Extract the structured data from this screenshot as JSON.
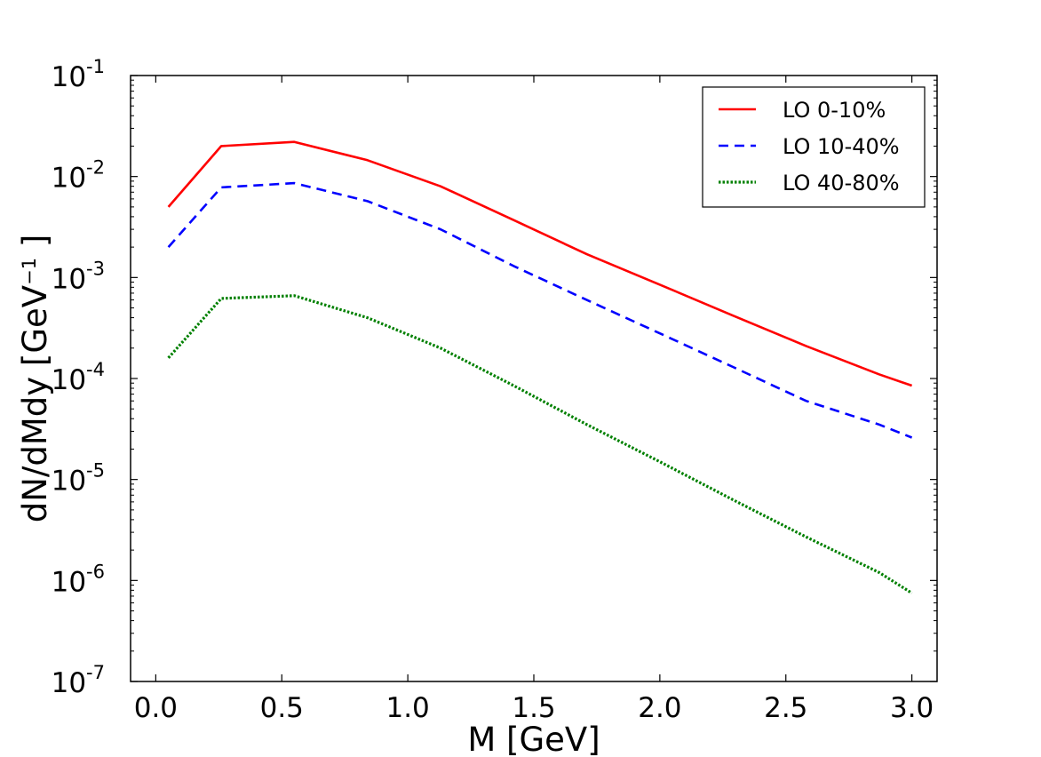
{
  "chart_data": {
    "type": "line",
    "xlabel": "M [GeV]",
    "ylabel": {
      "base": "dN/dMdy [GeV",
      "exp": "−1",
      "tail": " ]"
    },
    "xlim": [
      -0.1,
      3.1
    ],
    "ylim": [
      1e-07,
      0.1
    ],
    "yscale": "log",
    "grid": false,
    "legend_position": "top-right",
    "xticks": [
      0.0,
      0.5,
      1.0,
      1.5,
      2.0,
      2.5,
      3.0
    ],
    "xtick_labels": [
      "0.0",
      "0.5",
      "1.0",
      "1.5",
      "2.0",
      "2.5",
      "3.0"
    ],
    "yticks": [
      {
        "value": 1e-07,
        "base": "10",
        "exp": "-7"
      },
      {
        "value": 1e-06,
        "base": "10",
        "exp": "-6"
      },
      {
        "value": 1e-05,
        "base": "10",
        "exp": "-5"
      },
      {
        "value": 0.0001,
        "base": "10",
        "exp": "-4"
      },
      {
        "value": 0.001,
        "base": "10",
        "exp": "-3"
      },
      {
        "value": 0.01,
        "base": "10",
        "exp": "-2"
      },
      {
        "value": 0.1,
        "base": "10",
        "exp": "-1"
      }
    ],
    "series": [
      {
        "name": "LO 0-10%",
        "color": "#ff0000",
        "style": "solid",
        "x": [
          0.05,
          0.26,
          0.55,
          0.84,
          1.13,
          1.42,
          1.71,
          2.0,
          2.29,
          2.58,
          2.87,
          3.0
        ],
        "y": [
          0.005,
          0.02,
          0.022,
          0.0145,
          0.008,
          0.0037,
          0.0017,
          0.00085,
          0.00042,
          0.00021,
          0.00011,
          8.5e-05
        ]
      },
      {
        "name": "LO 10-40%",
        "color": "#0000ff",
        "style": "dashed",
        "x": [
          0.05,
          0.26,
          0.55,
          0.84,
          1.13,
          1.42,
          1.71,
          2.0,
          2.29,
          2.58,
          2.87,
          3.0
        ],
        "y": [
          0.002,
          0.0078,
          0.0086,
          0.0057,
          0.003,
          0.0013,
          0.0006,
          0.00028,
          0.00013,
          6e-05,
          3.5e-05,
          2.6e-05
        ]
      },
      {
        "name": "LO 40-80%",
        "color": "#008000",
        "style": "dotted",
        "x": [
          0.05,
          0.26,
          0.55,
          0.84,
          1.13,
          1.42,
          1.71,
          2.0,
          2.29,
          2.58,
          2.87,
          3.0
        ],
        "y": [
          0.00016,
          0.00062,
          0.00066,
          0.0004,
          0.0002,
          8.5e-05,
          3.5e-05,
          1.5e-05,
          6.3e-06,
          2.7e-06,
          1.2e-06,
          7.5e-07
        ]
      }
    ]
  }
}
